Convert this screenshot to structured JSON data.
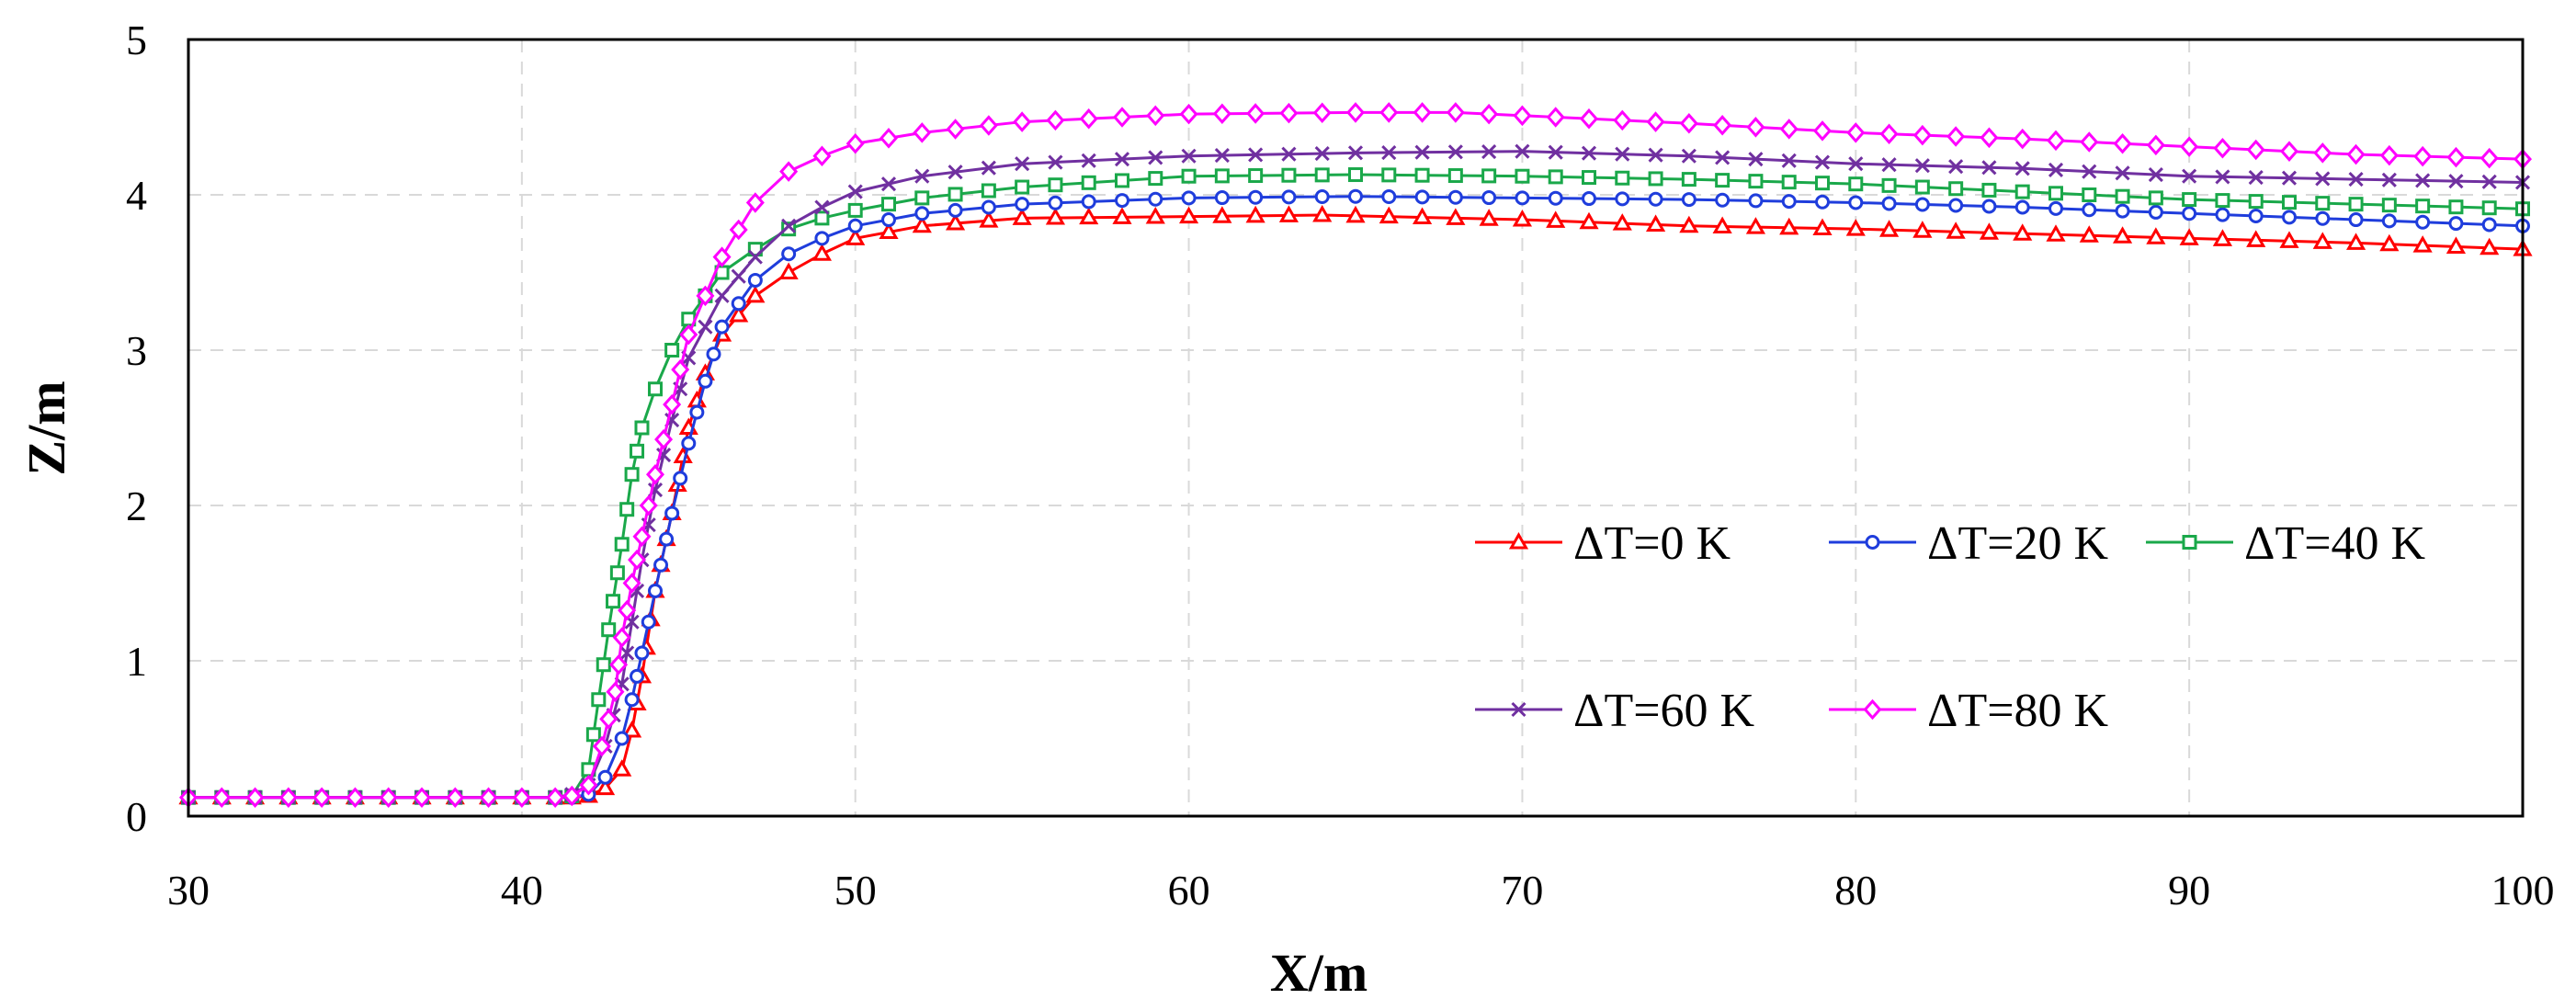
{
  "chart_data": {
    "type": "line",
    "title": "",
    "xlabel": "X/m",
    "ylabel": "Z/m",
    "xlim": [
      30,
      100
    ],
    "ylim": [
      0,
      5
    ],
    "xticks": [
      "30",
      "40",
      "50",
      "60",
      "70",
      "80",
      "90",
      "100"
    ],
    "yticks": [
      "0",
      "1",
      "2",
      "3",
      "4",
      "5"
    ],
    "grid": true,
    "legend_position": "bottom-right inside",
    "series": [
      {
        "name": "ΔT=0 K",
        "color": "#ff0000",
        "marker": "triangle",
        "x": [
          30,
          32,
          34,
          36,
          38,
          40,
          41,
          41.5,
          42,
          42.5,
          43,
          43.3,
          43.6,
          44,
          44.5,
          45,
          45.5,
          46,
          47,
          48,
          49,
          50,
          52,
          55,
          60,
          64,
          70,
          75,
          80,
          85,
          90,
          95,
          100
        ],
        "y": [
          0.12,
          0.12,
          0.12,
          0.12,
          0.12,
          0.12,
          0.12,
          0.12,
          0.13,
          0.18,
          0.3,
          0.55,
          0.9,
          1.45,
          1.95,
          2.5,
          2.85,
          3.1,
          3.35,
          3.5,
          3.62,
          3.72,
          3.8,
          3.85,
          3.86,
          3.87,
          3.84,
          3.8,
          3.78,
          3.75,
          3.72,
          3.69,
          3.65
        ]
      },
      {
        "name": "ΔT=20 K",
        "color": "#1f3ddc",
        "marker": "circle",
        "x": [
          30,
          32,
          34,
          36,
          38,
          40,
          41,
          41.5,
          42,
          42.5,
          43,
          43.3,
          43.6,
          44,
          44.5,
          45,
          45.5,
          46,
          47,
          48,
          49,
          50,
          52,
          55,
          60,
          65,
          70,
          75,
          80,
          85,
          90,
          95,
          100
        ],
        "y": [
          0.12,
          0.12,
          0.12,
          0.12,
          0.12,
          0.12,
          0.12,
          0.12,
          0.14,
          0.25,
          0.5,
          0.75,
          1.05,
          1.45,
          1.95,
          2.4,
          2.8,
          3.15,
          3.45,
          3.62,
          3.72,
          3.8,
          3.88,
          3.94,
          3.98,
          3.99,
          3.98,
          3.97,
          3.95,
          3.92,
          3.88,
          3.84,
          3.8
        ]
      },
      {
        "name": "ΔT=40 K",
        "color": "#1aa84a",
        "marker": "square",
        "x": [
          30,
          32,
          34,
          36,
          38,
          40,
          41,
          41.5,
          42,
          42.3,
          42.6,
          43,
          43.3,
          43.6,
          44,
          44.5,
          45,
          45.5,
          46,
          47,
          48,
          49,
          50,
          52,
          55,
          60,
          65,
          70,
          75,
          80,
          85,
          90,
          95,
          100
        ],
        "y": [
          0.12,
          0.12,
          0.12,
          0.12,
          0.12,
          0.12,
          0.12,
          0.13,
          0.3,
          0.75,
          1.2,
          1.75,
          2.2,
          2.5,
          2.75,
          3.0,
          3.2,
          3.35,
          3.5,
          3.65,
          3.78,
          3.85,
          3.9,
          3.98,
          4.05,
          4.12,
          4.13,
          4.12,
          4.1,
          4.07,
          4.02,
          3.97,
          3.94,
          3.91
        ]
      },
      {
        "name": "ΔT=60 K",
        "color": "#7030a0",
        "marker": "x",
        "x": [
          30,
          32,
          34,
          36,
          38,
          40,
          41,
          41.5,
          42,
          42.5,
          43,
          43.3,
          43.6,
          44,
          44.5,
          45,
          45.5,
          46,
          47,
          48,
          49,
          50,
          52,
          55,
          60,
          65,
          70,
          75,
          80,
          85,
          90,
          95,
          100
        ],
        "y": [
          0.12,
          0.12,
          0.12,
          0.12,
          0.12,
          0.12,
          0.12,
          0.14,
          0.2,
          0.45,
          0.85,
          1.25,
          1.65,
          2.1,
          2.55,
          2.95,
          3.15,
          3.35,
          3.6,
          3.8,
          3.92,
          4.02,
          4.12,
          4.2,
          4.25,
          4.27,
          4.28,
          4.25,
          4.2,
          4.17,
          4.12,
          4.1,
          4.08
        ]
      },
      {
        "name": "ΔT=80 K",
        "color": "#ff00ff",
        "marker": "diamond",
        "x": [
          30,
          32,
          34,
          36,
          38,
          40,
          41,
          41.5,
          42,
          42.4,
          42.8,
          43,
          43.3,
          43.6,
          44,
          44.5,
          45,
          45.5,
          46,
          47,
          48,
          49,
          50,
          52,
          55,
          60,
          65,
          68,
          70,
          75,
          80,
          85,
          90,
          95,
          100
        ],
        "y": [
          0.12,
          0.12,
          0.12,
          0.12,
          0.12,
          0.12,
          0.12,
          0.13,
          0.2,
          0.45,
          0.8,
          1.15,
          1.5,
          1.8,
          2.2,
          2.65,
          3.1,
          3.35,
          3.6,
          3.95,
          4.15,
          4.25,
          4.33,
          4.4,
          4.47,
          4.52,
          4.53,
          4.53,
          4.51,
          4.46,
          4.4,
          4.36,
          4.31,
          4.26,
          4.23
        ]
      }
    ]
  }
}
